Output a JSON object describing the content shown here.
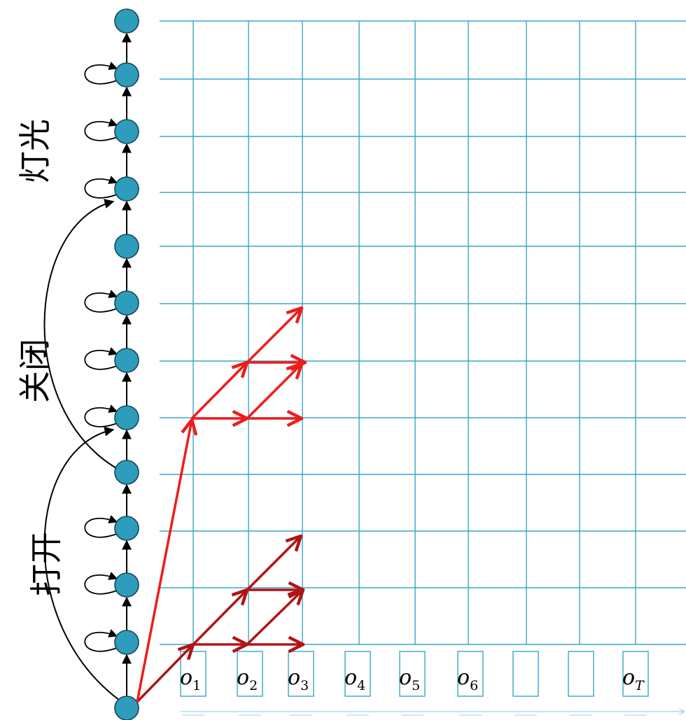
{
  "word_labels": [
    "打开",
    "关闭",
    "灯光"
  ],
  "observation_labels": [
    {
      "base": "o",
      "sub": "1"
    },
    {
      "base": "o",
      "sub": "2"
    },
    {
      "base": "o",
      "sub": "3"
    },
    {
      "base": "o",
      "sub": "4"
    },
    {
      "base": "o",
      "sub": "5"
    },
    {
      "base": "o",
      "sub": "6"
    },
    {
      "base": "",
      "sub": ""
    },
    {
      "base": "",
      "sub": ""
    },
    {
      "base": "o",
      "sub": "T"
    }
  ],
  "colors": {
    "grid": "#3aa6c8",
    "state_fill": "#2e9cbb",
    "state_stroke": "#17455a",
    "path_bright": "#ee1c1c",
    "path_dark": "#b01515",
    "arrow": "#000000"
  },
  "icons": [
    "state-node",
    "self-loop-arrow",
    "transition-arrow",
    "time-axis-arrow"
  ]
}
